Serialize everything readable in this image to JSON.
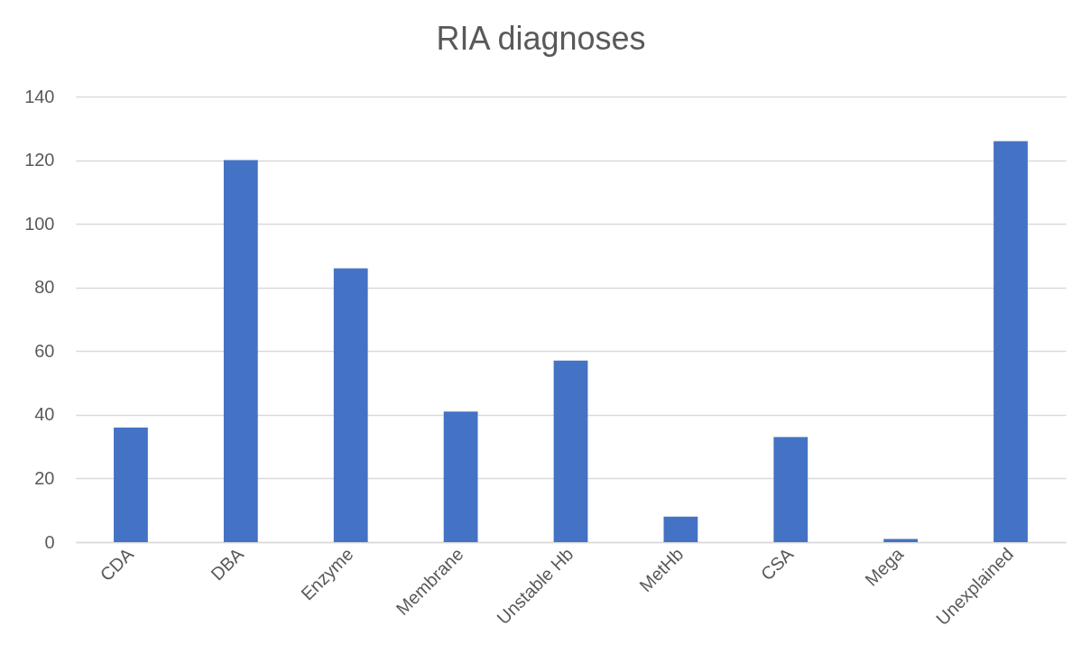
{
  "chart_data": {
    "type": "bar",
    "title": "RIA diagnoses",
    "categories": [
      "CDA",
      "DBA",
      "Enzyme",
      "Membrane",
      "Unstable Hb",
      "MetHb",
      "CSA",
      "Mega",
      "Unexplained"
    ],
    "values": [
      36,
      120,
      86,
      41,
      57,
      8,
      33,
      1,
      126
    ],
    "color": "#4472c4",
    "ylim": [
      0,
      140
    ],
    "yticks": [
      0,
      20,
      40,
      60,
      80,
      100,
      120,
      140
    ],
    "grid": "y"
  }
}
